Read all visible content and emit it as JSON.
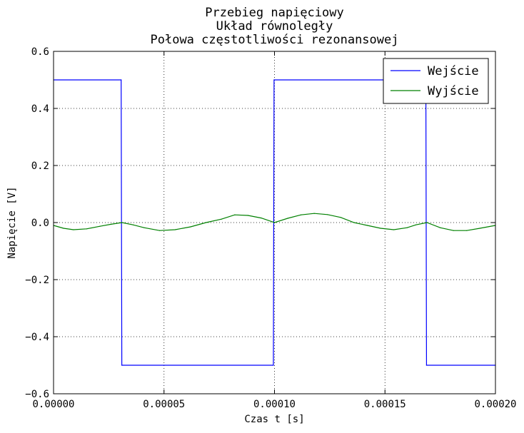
{
  "chart_data": {
    "type": "line",
    "title_lines": [
      "Przebieg napięciowy",
      "Układ równoległy",
      "Połowa częstotliwości rezonansowej"
    ],
    "xlabel": "Czas t [s]",
    "ylabel": "Napięcie [V]",
    "xlim": [
      0,
      0.0002
    ],
    "ylim": [
      -0.6,
      0.6
    ],
    "x_ticks": [
      0,
      5e-05,
      0.0001,
      0.00015,
      0.0002
    ],
    "x_tick_labels": [
      "0.00000",
      "0.00005",
      "0.00010",
      "0.00015",
      "0.00020"
    ],
    "y_ticks": [
      -0.6,
      -0.4,
      -0.2,
      0.0,
      0.2,
      0.4,
      0.6
    ],
    "y_tick_labels": [
      "−0.6",
      "−0.4",
      "−0.2",
      "0.0",
      "0.2",
      "0.4",
      "0.6"
    ],
    "grid": true,
    "legend_position": "top-right",
    "series": [
      {
        "name": "Wejście",
        "color": "#0000ff",
        "x": [
          0,
          3.06e-05,
          3.09e-05,
          9.95e-05,
          9.98e-05,
          0.0001685,
          0.0001688,
          0.0002
        ],
        "y": [
          0.5,
          0.5,
          -0.5,
          -0.5,
          0.5,
          0.5,
          -0.5,
          -0.5
        ]
      },
      {
        "name": "Wyjście",
        "color": "#008000",
        "x": [
          0,
          4.5e-06,
          9e-06,
          1.5e-05,
          2.1e-05,
          2.6e-05,
          3.1e-05,
          3.6e-05,
          4.1e-05,
          4.8e-05,
          5.5e-05,
          6.2e-05,
          6.9e-05,
          7.6e-05,
          8.2e-05,
          8.8e-05,
          9.4e-05,
          0.0001,
          0.000106,
          0.000112,
          0.000118,
          0.000124,
          0.00013,
          0.000136,
          0.000142,
          0.000148,
          0.000154,
          0.00016,
          0.000164,
          0.000169,
          0.000175,
          0.000181,
          0.000187,
          0.000193,
          0.0002
        ],
        "y": [
          -0.01,
          -0.02,
          -0.025,
          -0.022,
          -0.013,
          -0.006,
          0.0,
          -0.008,
          -0.018,
          -0.028,
          -0.025,
          -0.015,
          0.0,
          0.012,
          0.027,
          0.025,
          0.016,
          0.0,
          0.015,
          0.027,
          0.032,
          0.028,
          0.018,
          0.0,
          -0.01,
          -0.02,
          -0.025,
          -0.018,
          -0.008,
          0.0,
          -0.018,
          -0.028,
          -0.028,
          -0.02,
          -0.01
        ]
      }
    ]
  }
}
